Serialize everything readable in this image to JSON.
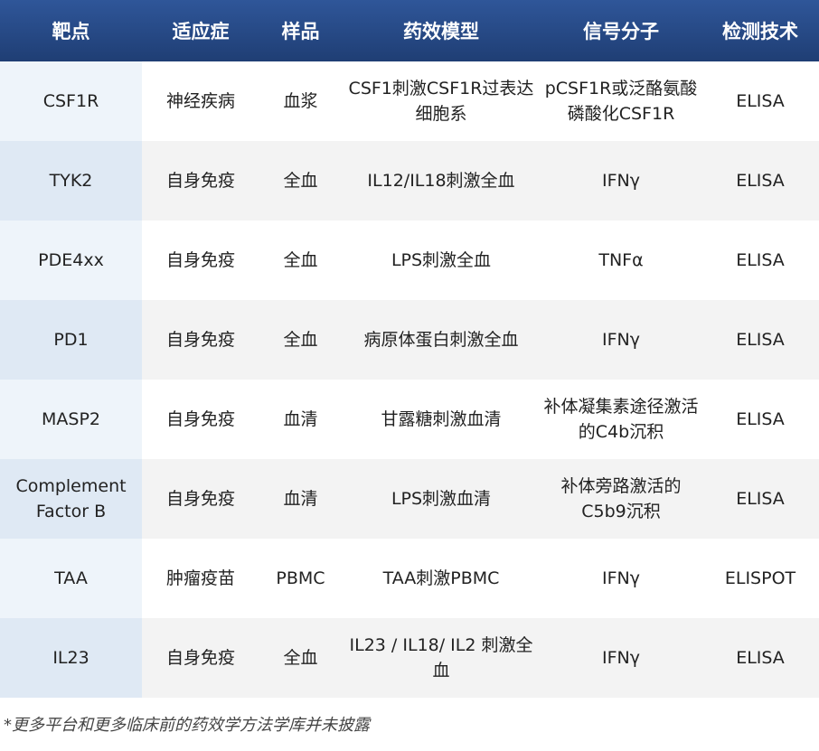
{
  "headers": [
    "靶点",
    "适应症",
    "样品",
    "药效模型",
    "信号分子",
    "检测技术"
  ],
  "rows": [
    [
      "CSF1R",
      "神经疾病",
      "血浆",
      "CSF1刺激CSF1R过表达细胞系",
      "pCSF1R或泛酪氨酸磷酸化CSF1R",
      "ELISA"
    ],
    [
      "TYK2",
      "自身免疫",
      "全血",
      "IL12/IL18刺激全血",
      "IFNγ",
      "ELISA"
    ],
    [
      "PDE4xx",
      "自身免疫",
      "全血",
      "LPS刺激全血",
      "TNFα",
      "ELISA"
    ],
    [
      "PD1",
      "自身免疫",
      "全血",
      "病原体蛋白刺激全血",
      "IFNγ",
      "ELISA"
    ],
    [
      "MASP2",
      "自身免疫",
      "血清",
      "甘露糖刺激血清",
      "补体凝集素途径激活的C4b沉积",
      "ELISA"
    ],
    [
      "Complement Factor B",
      "自身免疫",
      "血清",
      "LPS刺激血清",
      "补体旁路激活的C5b9沉积",
      "ELISA"
    ],
    [
      "TAA",
      "肿瘤疫苗",
      "PBMC",
      "TAA刺激PBMC",
      "IFNγ",
      "ELISPOT"
    ],
    [
      "IL23",
      "自身免疫",
      "全血",
      "IL23 / IL18/ IL2 刺激全血",
      "IFNγ",
      "ELISA"
    ]
  ],
  "footnote": "*更多平台和更多临床前的药效学方法学库并未披露",
  "colors": {
    "header": "#2f5699",
    "first_col_a": "#eef4fa",
    "first_col_b": "#dfe9f4",
    "stripe": "#f3f3f3"
  }
}
